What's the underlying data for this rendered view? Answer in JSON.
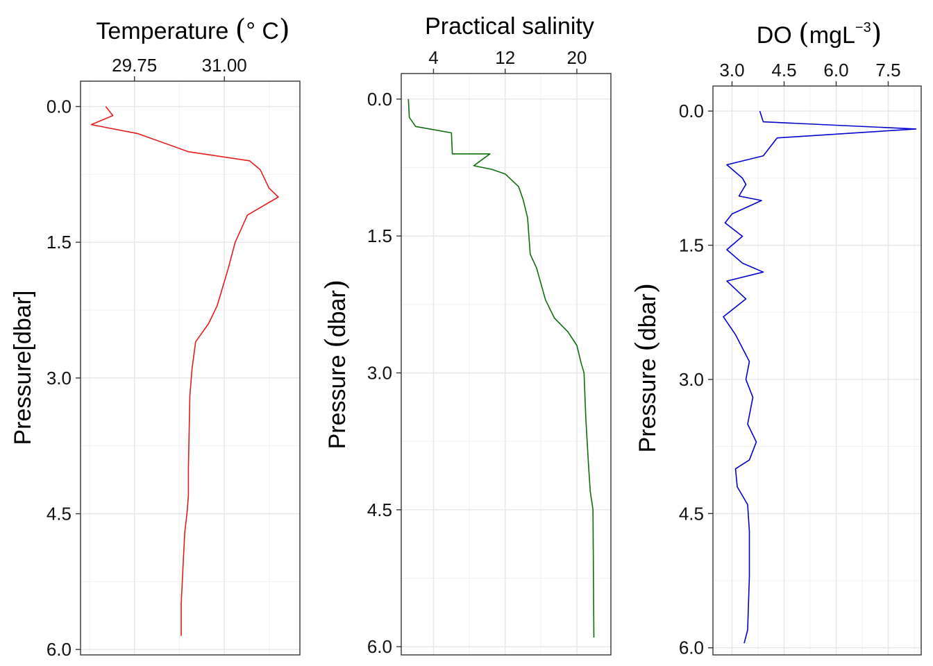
{
  "chart_data": [
    {
      "type": "line",
      "title": "",
      "xlabel_main": "Temperature ",
      "xlabel_open": "(",
      "xlabel_unit": "° C",
      "xlabel_close": ")",
      "ylabel": "Pressure[dbar]",
      "xlim": [
        29.0,
        32.05
      ],
      "ylim": [
        6.06,
        -0.28
      ],
      "xticks": [
        29.75,
        31.0
      ],
      "xtick_labels": [
        "29.75",
        "31.00"
      ],
      "yticks": [
        0.0,
        1.5,
        3.0,
        4.5,
        6.0
      ],
      "ytick_labels": [
        "0.0",
        "1.5",
        "3.0",
        "4.5",
        "6.0"
      ],
      "grid": true,
      "color": "#e41a1c",
      "series": [
        {
          "x": [
            29.35,
            29.45,
            29.15,
            29.8,
            30.5,
            31.35,
            31.5,
            31.62,
            31.75,
            31.32,
            31.15,
            31.05,
            30.9,
            30.78,
            30.6,
            30.55,
            30.52,
            30.5,
            30.5,
            30.48,
            30.45,
            30.43,
            30.4,
            30.4
          ],
          "y": [
            0.0,
            0.1,
            0.2,
            0.3,
            0.5,
            0.6,
            0.7,
            0.9,
            1.0,
            1.2,
            1.5,
            1.8,
            2.2,
            2.4,
            2.6,
            2.9,
            3.2,
            4.0,
            4.3,
            4.5,
            4.7,
            5.0,
            5.5,
            5.85
          ]
        }
      ]
    },
    {
      "type": "line",
      "title": "",
      "xlabel": "Practical salinity",
      "ylabel_main": "Pressure ",
      "ylabel_open": "(",
      "ylabel_unit": "dbar",
      "ylabel_close": ")",
      "xlim": [
        0.4,
        23.8
      ],
      "ylim": [
        6.09,
        -0.28
      ],
      "xticks": [
        4,
        12,
        20
      ],
      "xtick_labels": [
        "4",
        "12",
        "20"
      ],
      "yticks": [
        0.0,
        1.5,
        3.0,
        4.5,
        6.0
      ],
      "ytick_labels": [
        "0.0",
        "1.5",
        "3.0",
        "4.5",
        "6.0"
      ],
      "grid": true,
      "color": "#0b6e0b",
      "series": [
        {
          "x": [
            1.2,
            1.3,
            2.0,
            6.0,
            6.1,
            10.3,
            8.5,
            10.5,
            12.0,
            13.5,
            14.0,
            14.5,
            14.8,
            15.5,
            16.5,
            17.5,
            19.0,
            20.0,
            20.5,
            20.8,
            21.0,
            21.3,
            21.5,
            21.8,
            21.9
          ],
          "y": [
            0.0,
            0.2,
            0.3,
            0.37,
            0.6,
            0.6,
            0.73,
            0.77,
            0.82,
            0.96,
            1.1,
            1.3,
            1.7,
            1.85,
            2.2,
            2.4,
            2.55,
            2.7,
            2.9,
            3.0,
            3.5,
            4.0,
            4.3,
            4.5,
            5.9
          ]
        }
      ]
    },
    {
      "type": "line",
      "title": "",
      "xlabel_main": "DO ",
      "xlabel_open": "(",
      "xlabel_unit": "mgL",
      "xlabel_sup": "−3",
      "xlabel_close": ")",
      "ylabel_main": "Pressure ",
      "ylabel_open": "(",
      "ylabel_unit": "dbar",
      "ylabel_close": ")",
      "xlim": [
        2.45,
        8.45
      ],
      "ylim": [
        6.08,
        -0.28
      ],
      "xticks": [
        3.0,
        4.5,
        6.0,
        7.5
      ],
      "xtick_labels": [
        "3.0",
        "4.5",
        "6.0",
        "7.5"
      ],
      "yticks": [
        0.0,
        1.5,
        3.0,
        4.5,
        6.0
      ],
      "ytick_labels": [
        "0.0",
        "1.5",
        "3.0",
        "4.5",
        "6.0"
      ],
      "grid": true,
      "color": "#0000cc",
      "series": [
        {
          "x": [
            3.8,
            3.9,
            8.3,
            4.3,
            3.9,
            2.85,
            3.3,
            3.4,
            3.2,
            3.85,
            3.0,
            2.8,
            3.3,
            2.85,
            3.3,
            3.9,
            2.85,
            3.4,
            2.75,
            3.1,
            3.5,
            3.4,
            3.6,
            3.45,
            3.7,
            3.5,
            3.1,
            3.15,
            3.45,
            3.5,
            3.5,
            3.45,
            3.35
          ],
          "y": [
            0.0,
            0.12,
            0.2,
            0.3,
            0.5,
            0.6,
            0.75,
            0.82,
            0.95,
            1.0,
            1.15,
            1.25,
            1.4,
            1.55,
            1.7,
            1.8,
            1.9,
            2.1,
            2.3,
            2.5,
            2.8,
            3.0,
            3.2,
            3.5,
            3.7,
            3.9,
            4.0,
            4.2,
            4.4,
            4.7,
            5.2,
            5.8,
            5.95
          ]
        }
      ]
    }
  ]
}
